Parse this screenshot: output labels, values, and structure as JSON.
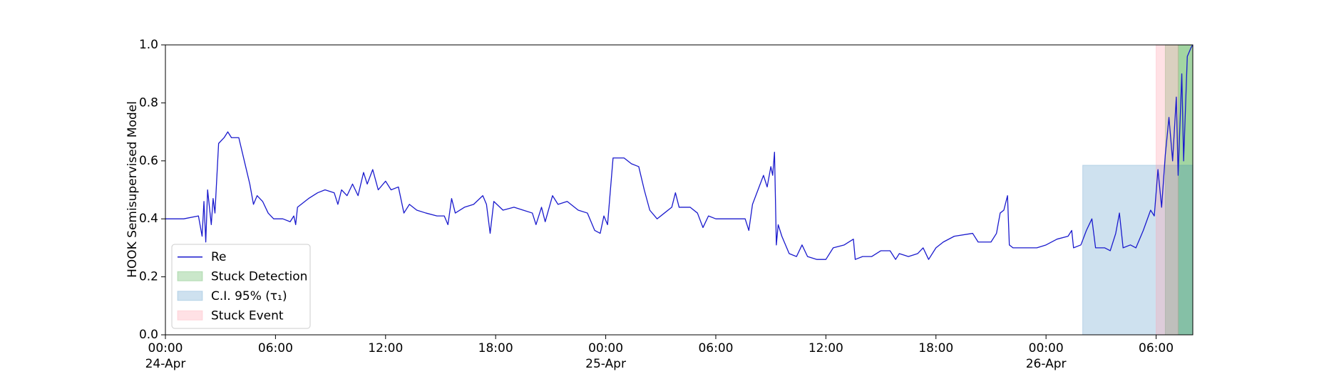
{
  "chart_data": {
    "type": "line",
    "ylabel": "HOOK Semisupervised Model",
    "xlim": [
      "1900-04-24 00:00",
      "1900-04-26 08:00"
    ],
    "ylim": [
      0,
      1
    ],
    "yticks": [
      {
        "value": 0,
        "label": "0.0"
      },
      0.2,
      0.4,
      0.6,
      0.8,
      {
        "value": 1,
        "label": "1.0"
      }
    ],
    "xticks": [
      {
        "value": "1900-04-24 00:00",
        "label": "00:00\n24-Apr\n1900"
      },
      {
        "value": "1900-04-24 06:00",
        "label": "06:00"
      },
      {
        "value": "1900-04-24 12:00",
        "label": "12:00"
      },
      {
        "value": "1900-04-24 18:00",
        "label": "18:00"
      },
      {
        "value": "1900-04-25 00:00",
        "label": "00:00\n25-Apr"
      },
      {
        "value": "1900-04-25 06:00",
        "label": "06:00"
      },
      {
        "value": "1900-04-25 12:00",
        "label": "12:00"
      },
      {
        "value": "1900-04-25 18:00",
        "label": "18:00"
      },
      {
        "value": "1900-04-26 00:00",
        "label": "00:00\n26-Apr"
      },
      {
        "value": "1900-04-26 06:00",
        "label": "06:00"
      }
    ],
    "legend": "lower left",
    "series": [
      {
        "name": "Re",
        "color": "#1a1acd",
        "x": [
          "1900-04-24 00:00",
          "1900-04-24 01:00",
          "1900-04-24 01:48",
          "1900-04-24 02:00",
          "1900-04-24 02:06",
          "1900-04-24 02:12",
          "1900-04-24 02:18",
          "1900-04-24 02:30",
          "1900-04-24 02:36",
          "1900-04-24 02:42",
          "1900-04-24 02:54",
          "1900-04-24 03:12",
          "1900-04-24 03:24",
          "1900-04-24 03:36",
          "1900-04-24 04:00",
          "1900-04-24 04:18",
          "1900-04-24 04:36",
          "1900-04-24 04:48",
          "1900-04-24 05:00",
          "1900-04-24 05:18",
          "1900-04-24 05:36",
          "1900-04-24 05:54",
          "1900-04-24 06:24",
          "1900-04-24 06:48",
          "1900-04-24 07:00",
          "1900-04-24 07:06",
          "1900-04-24 07:12",
          "1900-04-24 07:48",
          "1900-04-24 08:18",
          "1900-04-24 08:42",
          "1900-04-24 09:12",
          "1900-04-24 09:24",
          "1900-04-24 09:36",
          "1900-04-24 09:54",
          "1900-04-24 10:12",
          "1900-04-24 10:30",
          "1900-04-24 10:48",
          "1900-04-24 11:00",
          "1900-04-24 11:18",
          "1900-04-24 11:36",
          "1900-04-24 12:00",
          "1900-04-24 12:18",
          "1900-04-24 12:42",
          "1900-04-24 13:00",
          "1900-04-24 13:18",
          "1900-04-24 13:42",
          "1900-04-24 14:12",
          "1900-04-24 14:48",
          "1900-04-24 15:12",
          "1900-04-24 15:24",
          "1900-04-24 15:36",
          "1900-04-24 15:48",
          "1900-04-24 16:18",
          "1900-04-24 16:48",
          "1900-04-24 17:18",
          "1900-04-24 17:30",
          "1900-04-24 17:42",
          "1900-04-24 17:54",
          "1900-04-24 18:24",
          "1900-04-24 19:00",
          "1900-04-24 19:30",
          "1900-04-24 20:00",
          "1900-04-24 20:12",
          "1900-04-24 20:30",
          "1900-04-24 20:42",
          "1900-04-24 21:06",
          "1900-04-24 21:24",
          "1900-04-24 21:54",
          "1900-04-24 22:30",
          "1900-04-24 23:00",
          "1900-04-24 23:24",
          "1900-04-24 23:42",
          "1900-04-24 23:54",
          "1900-04-25 00:06",
          "1900-04-25 00:24",
          "1900-04-25 01:00",
          "1900-04-25 01:24",
          "1900-04-25 01:48",
          "1900-04-25 02:06",
          "1900-04-25 02:24",
          "1900-04-25 02:48",
          "1900-04-25 03:12",
          "1900-04-25 03:36",
          "1900-04-25 03:48",
          "1900-04-25 04:00",
          "1900-04-25 04:36",
          "1900-04-25 05:00",
          "1900-04-25 05:18",
          "1900-04-25 05:36",
          "1900-04-25 06:00",
          "1900-04-25 07:00",
          "1900-04-25 07:36",
          "1900-04-25 07:48",
          "1900-04-25 08:00",
          "1900-04-25 08:18",
          "1900-04-25 08:36",
          "1900-04-25 08:48",
          "1900-04-25 09:00",
          "1900-04-25 09:06",
          "1900-04-25 09:12",
          "1900-04-25 09:18",
          "1900-04-25 09:24",
          "1900-04-25 09:36",
          "1900-04-25 10:00",
          "1900-04-25 10:24",
          "1900-04-25 10:42",
          "1900-04-25 11:00",
          "1900-04-25 11:30",
          "1900-04-25 12:00",
          "1900-04-25 12:24",
          "1900-04-25 13:00",
          "1900-04-25 13:30",
          "1900-04-25 13:36",
          "1900-04-25 14:00",
          "1900-04-25 14:30",
          "1900-04-25 15:00",
          "1900-04-25 15:30",
          "1900-04-25 15:48",
          "1900-04-25 16:00",
          "1900-04-25 16:30",
          "1900-04-25 17:00",
          "1900-04-25 17:18",
          "1900-04-25 17:36",
          "1900-04-25 18:00",
          "1900-04-25 18:24",
          "1900-04-25 19:00",
          "1900-04-25 20:00",
          "1900-04-25 20:18",
          "1900-04-25 21:00",
          "1900-04-25 21:18",
          "1900-04-25 21:30",
          "1900-04-25 21:42",
          "1900-04-25 21:54",
          "1900-04-25 22:00",
          "1900-04-25 22:12",
          "1900-04-25 23:00",
          "1900-04-25 23:30",
          "1900-04-26 00:00",
          "1900-04-26 00:36",
          "1900-04-26 01:12",
          "1900-04-26 01:24",
          "1900-04-26 01:30",
          "1900-04-26 01:54",
          "1900-04-26 02:12",
          "1900-04-26 02:30",
          "1900-04-26 02:42",
          "1900-04-26 03:12",
          "1900-04-26 03:30",
          "1900-04-26 03:48",
          "1900-04-26 04:00",
          "1900-04-26 04:12",
          "1900-04-26 04:36",
          "1900-04-26 04:54",
          "1900-04-26 05:18",
          "1900-04-26 05:42",
          "1900-04-26 05:54",
          "1900-04-26 06:06",
          "1900-04-26 06:18",
          "1900-04-26 06:30",
          "1900-04-26 06:42",
          "1900-04-26 06:54",
          "1900-04-26 07:06",
          "1900-04-26 07:12",
          "1900-04-26 07:24",
          "1900-04-26 07:30",
          "1900-04-26 07:42",
          "1900-04-26 07:54",
          "1900-04-26 08:00"
        ],
        "values": [
          0.4,
          0.4,
          0.41,
          0.34,
          0.46,
          0.32,
          0.5,
          0.38,
          0.47,
          0.42,
          0.66,
          0.68,
          0.7,
          0.68,
          0.68,
          0.6,
          0.52,
          0.45,
          0.48,
          0.46,
          0.42,
          0.4,
          0.4,
          0.39,
          0.41,
          0.38,
          0.44,
          0.47,
          0.49,
          0.5,
          0.49,
          0.45,
          0.5,
          0.48,
          0.52,
          0.48,
          0.56,
          0.52,
          0.57,
          0.5,
          0.53,
          0.5,
          0.51,
          0.42,
          0.45,
          0.43,
          0.42,
          0.41,
          0.41,
          0.38,
          0.47,
          0.42,
          0.44,
          0.45,
          0.48,
          0.45,
          0.35,
          0.46,
          0.43,
          0.44,
          0.43,
          0.42,
          0.38,
          0.44,
          0.39,
          0.48,
          0.45,
          0.46,
          0.43,
          0.42,
          0.36,
          0.35,
          0.41,
          0.38,
          0.61,
          0.61,
          0.59,
          0.58,
          0.5,
          0.43,
          0.4,
          0.42,
          0.44,
          0.49,
          0.44,
          0.44,
          0.42,
          0.37,
          0.41,
          0.4,
          0.4,
          0.4,
          0.36,
          0.45,
          0.5,
          0.55,
          0.51,
          0.58,
          0.55,
          0.63,
          0.31,
          0.38,
          0.34,
          0.28,
          0.27,
          0.31,
          0.27,
          0.26,
          0.26,
          0.3,
          0.31,
          0.33,
          0.26,
          0.27,
          0.27,
          0.29,
          0.29,
          0.26,
          0.28,
          0.27,
          0.28,
          0.3,
          0.26,
          0.3,
          0.32,
          0.34,
          0.35,
          0.32,
          0.32,
          0.35,
          0.42,
          0.43,
          0.48,
          0.31,
          0.3,
          0.3,
          0.3,
          0.31,
          0.33,
          0.34,
          0.36,
          0.3,
          0.31,
          0.36,
          0.4,
          0.3,
          0.3,
          0.29,
          0.35,
          0.42,
          0.3,
          0.31,
          0.3,
          0.36,
          0.43,
          0.41,
          0.57,
          0.44,
          0.62,
          0.75,
          0.6,
          0.82,
          0.55,
          0.9,
          0.6,
          0.96,
          0.99,
          1.0
        ]
      }
    ],
    "spans": [
      {
        "name": "Stuck Detection",
        "color": "#2ca02c",
        "opacity": 0.25,
        "ranges": [
          [
            "1900-04-26 06:30",
            "1900-04-26 08:00"
          ],
          [
            "1900-04-26 07:12",
            "1900-04-26 08:00"
          ]
        ]
      },
      {
        "name": "C.I. 95% (τ₁)",
        "color": "#1f77b4",
        "opacity": 0.22,
        "ymax": 0.585,
        "ranges": [
          [
            "1900-04-26 02:00",
            "1900-04-26 08:00"
          ]
        ]
      },
      {
        "name": "Stuck Event",
        "color": "#ff9aa8",
        "opacity": 0.3,
        "ranges": [
          [
            "1900-04-26 06:00",
            "1900-04-26 07:12"
          ]
        ]
      }
    ]
  }
}
